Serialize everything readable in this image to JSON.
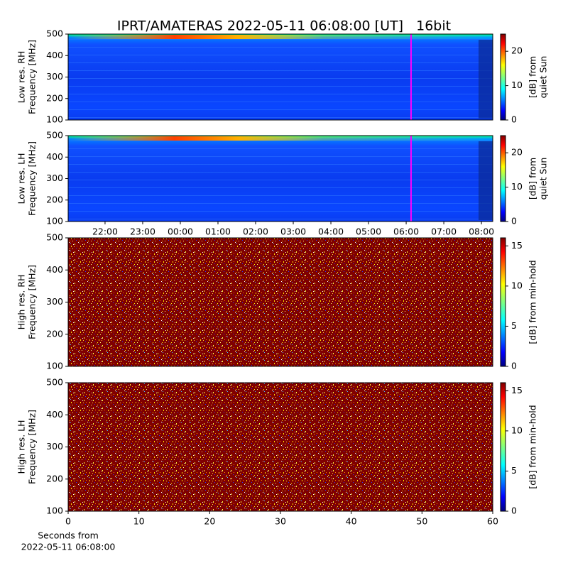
{
  "title": "IPRT/AMATERAS 2022-05-11 06:08:00 [UT]   16bit",
  "chart_data": [
    {
      "type": "heatmap",
      "ylabel": [
        "Low res. RH",
        "Frequency [MHz]"
      ],
      "xlim": [
        21.02,
        32.3
      ],
      "ylim": [
        100,
        500
      ],
      "yticks": [
        100,
        200,
        300,
        400,
        500
      ],
      "vline": 30.13,
      "vline_color": "#ff00ff",
      "colormap": "jet",
      "clim": [
        0,
        25
      ],
      "cticks": [
        0,
        10,
        20
      ],
      "clabel": [
        "[dB] from",
        "quiet Sun"
      ]
    },
    {
      "type": "heatmap",
      "ylabel": [
        "Low res. LH",
        "Frequency [MHz]"
      ],
      "xlim": [
        21.02,
        32.3
      ],
      "ylim": [
        100,
        500
      ],
      "yticks": [
        100,
        200,
        300,
        400,
        500
      ],
      "xticks": [
        {
          "value": 22,
          "label": "22:00"
        },
        {
          "value": 23,
          "label": "23:00"
        },
        {
          "value": 24,
          "label": "00:00"
        },
        {
          "value": 25,
          "label": "01:00"
        },
        {
          "value": 26,
          "label": "02:00"
        },
        {
          "value": 27,
          "label": "03:00"
        },
        {
          "value": 28,
          "label": "04:00"
        },
        {
          "value": 29,
          "label": "05:00"
        },
        {
          "value": 30,
          "label": "06:00"
        },
        {
          "value": 31,
          "label": "07:00"
        },
        {
          "value": 32,
          "label": "08:00"
        }
      ],
      "vline": 30.13,
      "vline_color": "#ff00ff",
      "colormap": "jet",
      "clim": [
        0,
        25
      ],
      "cticks": [
        0,
        10,
        20
      ],
      "clabel": [
        "[dB] from",
        "quiet Sun"
      ]
    },
    {
      "type": "heatmap",
      "ylabel": [
        "High res. RH",
        "Frequency [MHz]"
      ],
      "xlim": [
        0,
        60
      ],
      "ylim": [
        100,
        500
      ],
      "yticks": [
        100,
        200,
        300,
        400,
        500
      ],
      "colormap": "jet",
      "clim": [
        0,
        16
      ],
      "cticks": [
        0,
        5,
        10,
        15
      ],
      "clabel": [
        "[dB] from min-hold"
      ]
    },
    {
      "type": "heatmap",
      "ylabel": [
        "High res. LH",
        "Frequency [MHz]"
      ],
      "xlim": [
        0,
        60
      ],
      "ylim": [
        100,
        500
      ],
      "yticks": [
        100,
        200,
        300,
        400,
        500
      ],
      "xticks": [
        0,
        10,
        20,
        30,
        40,
        50,
        60
      ],
      "xlabel": [
        "Seconds from",
        "2022-05-11 06:08:00"
      ],
      "colormap": "jet",
      "clim": [
        0,
        16
      ],
      "cticks": [
        0,
        5,
        10,
        15
      ],
      "clabel": [
        "[dB] from min-hold"
      ]
    }
  ]
}
